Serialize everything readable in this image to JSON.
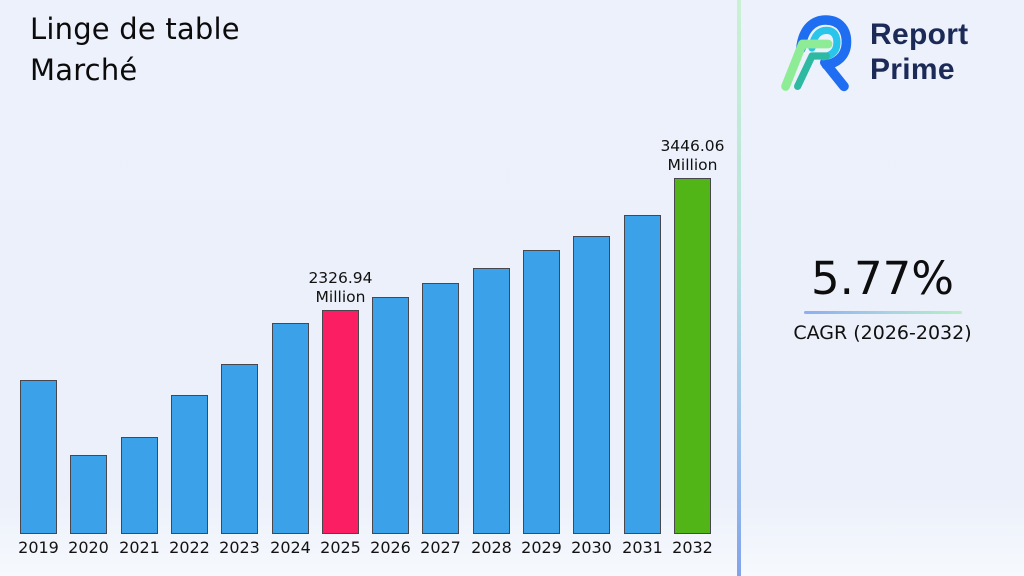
{
  "page": {
    "title_lines": [
      "Linge de table",
      "Marché"
    ]
  },
  "logo": {
    "line1": "Report",
    "line2": "Prime",
    "text_color": "#1c2a57",
    "mark_colors": [
      "#1f6df0",
      "#29c5ea",
      "#8dec95",
      "#2db9a2"
    ]
  },
  "stats": {
    "cagr_value": "5.77%",
    "cagr_label": "CAGR (2026-2032)",
    "underline_gradient": [
      "#8dacf2",
      "#b5f0c2"
    ]
  },
  "divider": {
    "gradient_top": "#c9f1d1",
    "gradient_bottom": "#82a3ec"
  },
  "chart_data": {
    "type": "bar",
    "title": "Linge de table Marché",
    "unit": "Million",
    "categories": [
      "2019",
      "2020",
      "2021",
      "2022",
      "2023",
      "2024",
      "2025",
      "2026",
      "2027",
      "2028",
      "2029",
      "2030",
      "2031",
      "2032"
    ],
    "values": [
      1733,
      1098,
      1250,
      1606,
      1869,
      2216,
      2326.94,
      2437,
      2553,
      2686,
      2836,
      2957,
      3130,
      3446.06
    ],
    "xlabel": "",
    "ylabel": "",
    "ylim": [
      430,
      3565
    ],
    "grid": false,
    "legend": "none",
    "bar_color_default": "#3ba1e9",
    "bar_edge_color": "#47474d",
    "highlighted_bars": [
      {
        "category": "2025",
        "color": "#fb1e63"
      },
      {
        "category": "2032",
        "color": "#52b517"
      }
    ],
    "annotations": [
      {
        "category": "2025",
        "lines": [
          "2326.94",
          "Million"
        ]
      },
      {
        "category": "2032",
        "lines": [
          "3446.06",
          "Million"
        ]
      }
    ]
  }
}
